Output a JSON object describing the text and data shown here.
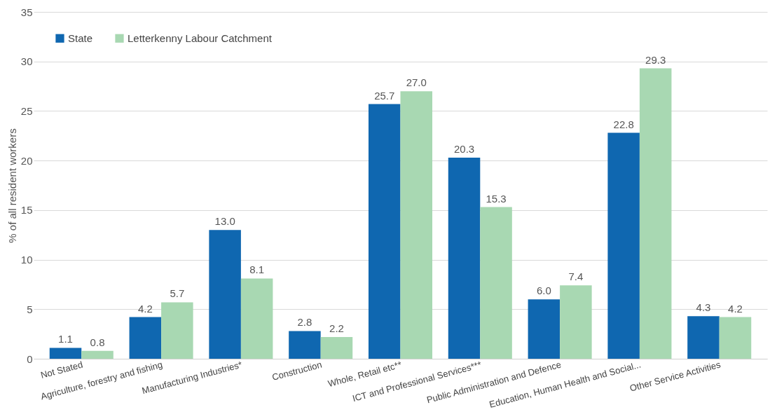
{
  "chart_data": {
    "type": "bar",
    "ylabel": "% of all resident workers",
    "categories": [
      "Not Stated",
      "Agriculture, forestry and fishing",
      "Manufacturing Industries*",
      "Construction",
      "Whole, Retail etc**",
      "ICT and Professional Services***",
      "Public Administration and Defence",
      "Education, Human Health and Social...",
      "Other Service Activities"
    ],
    "series": [
      {
        "name": "State",
        "color": "#0f67b0",
        "values": [
          1.1,
          4.2,
          13,
          2.8,
          25.7,
          20.3,
          6,
          22.8,
          4.3
        ],
        "value_labels": [
          "1.1",
          "4.2",
          "13.0",
          "2.8",
          "25.7",
          "20.3",
          "6.0",
          "22.8",
          "4.3"
        ]
      },
      {
        "name": "Letterkenny Labour Catchment",
        "color": "#a8d8b2",
        "values": [
          0.8,
          5.7,
          8.1,
          2.2,
          27,
          15.3,
          7.4,
          29.3,
          4.2
        ],
        "value_labels": [
          "0.8",
          "5.7",
          "8.1",
          "2.2",
          "27.0",
          "15.3",
          "7.4",
          "29.3",
          "4.2"
        ]
      }
    ],
    "ylim": [
      0,
      35
    ],
    "yticks": [
      0,
      5,
      10,
      15,
      20,
      25,
      30,
      35
    ],
    "grid": "y",
    "legend": "top left"
  }
}
